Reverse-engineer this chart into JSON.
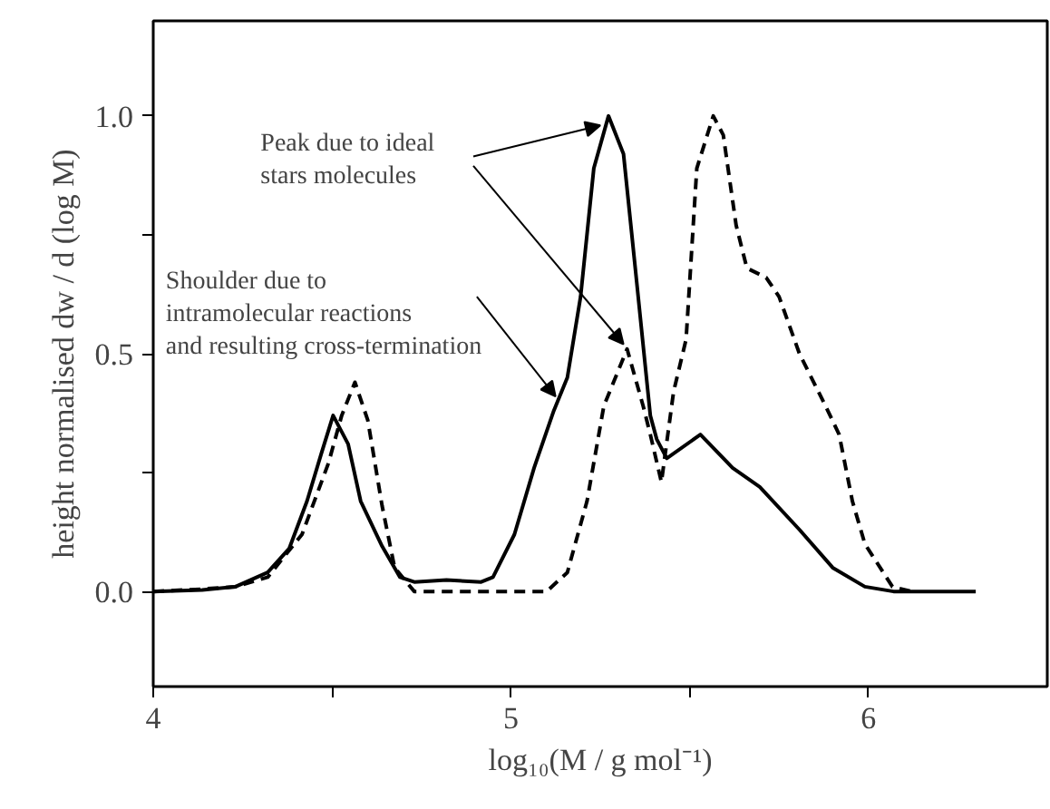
{
  "chart_data": {
    "type": "line",
    "xlabel": "log₁₀(M / g mol⁻¹)",
    "ylabel": "height normalised dw / d (log M)",
    "xlim": [
      4,
      6.5
    ],
    "ylim": [
      -0.2,
      1.2
    ],
    "xticks": [
      4,
      {
        "value": 4.5,
        "label": null
      },
      5,
      {
        "value": 5.5,
        "label": null
      },
      6
    ],
    "yticks": [
      {
        "value": 0,
        "label": "0.0"
      },
      {
        "value": 0.25,
        "label": null
      },
      0.5,
      {
        "value": 0.75,
        "label": null
      },
      {
        "value": 1,
        "label": "1.0"
      }
    ],
    "grid": false,
    "marker": "none",
    "series": [
      {
        "color": "#000000",
        "line_style": "solid",
        "x": [
          4.0,
          4.137,
          4.23,
          4.32,
          4.38,
          4.43,
          4.47,
          4.503,
          4.545,
          4.58,
          4.64,
          4.69,
          4.73,
          4.82,
          4.917,
          4.95,
          5.01,
          5.065,
          5.12,
          5.158,
          5.195,
          5.232,
          5.273,
          5.315,
          5.352,
          5.39,
          5.408,
          5.436,
          5.53,
          5.62,
          5.696,
          5.807,
          5.9,
          5.99,
          6.07,
          6.3
        ],
        "values": [
          0,
          0.003,
          0.01,
          0.04,
          0.09,
          0.19,
          0.29,
          0.37,
          0.31,
          0.19,
          0.095,
          0.03,
          0.02,
          0.024,
          0.02,
          0.03,
          0.12,
          0.26,
          0.38,
          0.45,
          0.62,
          0.89,
          1.0,
          0.92,
          0.65,
          0.37,
          0.32,
          0.28,
          0.33,
          0.26,
          0.22,
          0.13,
          0.05,
          0.01,
          0,
          0
        ]
      },
      {
        "color": "#000000",
        "line_style": "dashed",
        "x": [
          4.0,
          4.137,
          4.23,
          4.32,
          4.416,
          4.49,
          4.527,
          4.564,
          4.6,
          4.64,
          4.675,
          4.73,
          5.1,
          5.158,
          5.213,
          5.26,
          5.325,
          5.37,
          5.39,
          5.421,
          5.455,
          5.49,
          5.52,
          5.566,
          5.594,
          5.63,
          5.66,
          5.714,
          5.75,
          5.807,
          5.88,
          5.918,
          5.955,
          5.99,
          6.067,
          6.12
        ],
        "values": [
          0,
          0.005,
          0.01,
          0.03,
          0.12,
          0.27,
          0.37,
          0.44,
          0.36,
          0.18,
          0.05,
          0,
          0,
          0.04,
          0.19,
          0.39,
          0.51,
          0.39,
          0.33,
          0.23,
          0.42,
          0.53,
          0.89,
          1.0,
          0.96,
          0.77,
          0.68,
          0.66,
          0.62,
          0.5,
          0.39,
          0.33,
          0.19,
          0.1,
          0.01,
          0
        ]
      }
    ],
    "annotations": [
      "Peak due to ideal\nstars molecules",
      "Shoulder due to\nintramolecular reactions\nand resulting cross-termination"
    ]
  }
}
